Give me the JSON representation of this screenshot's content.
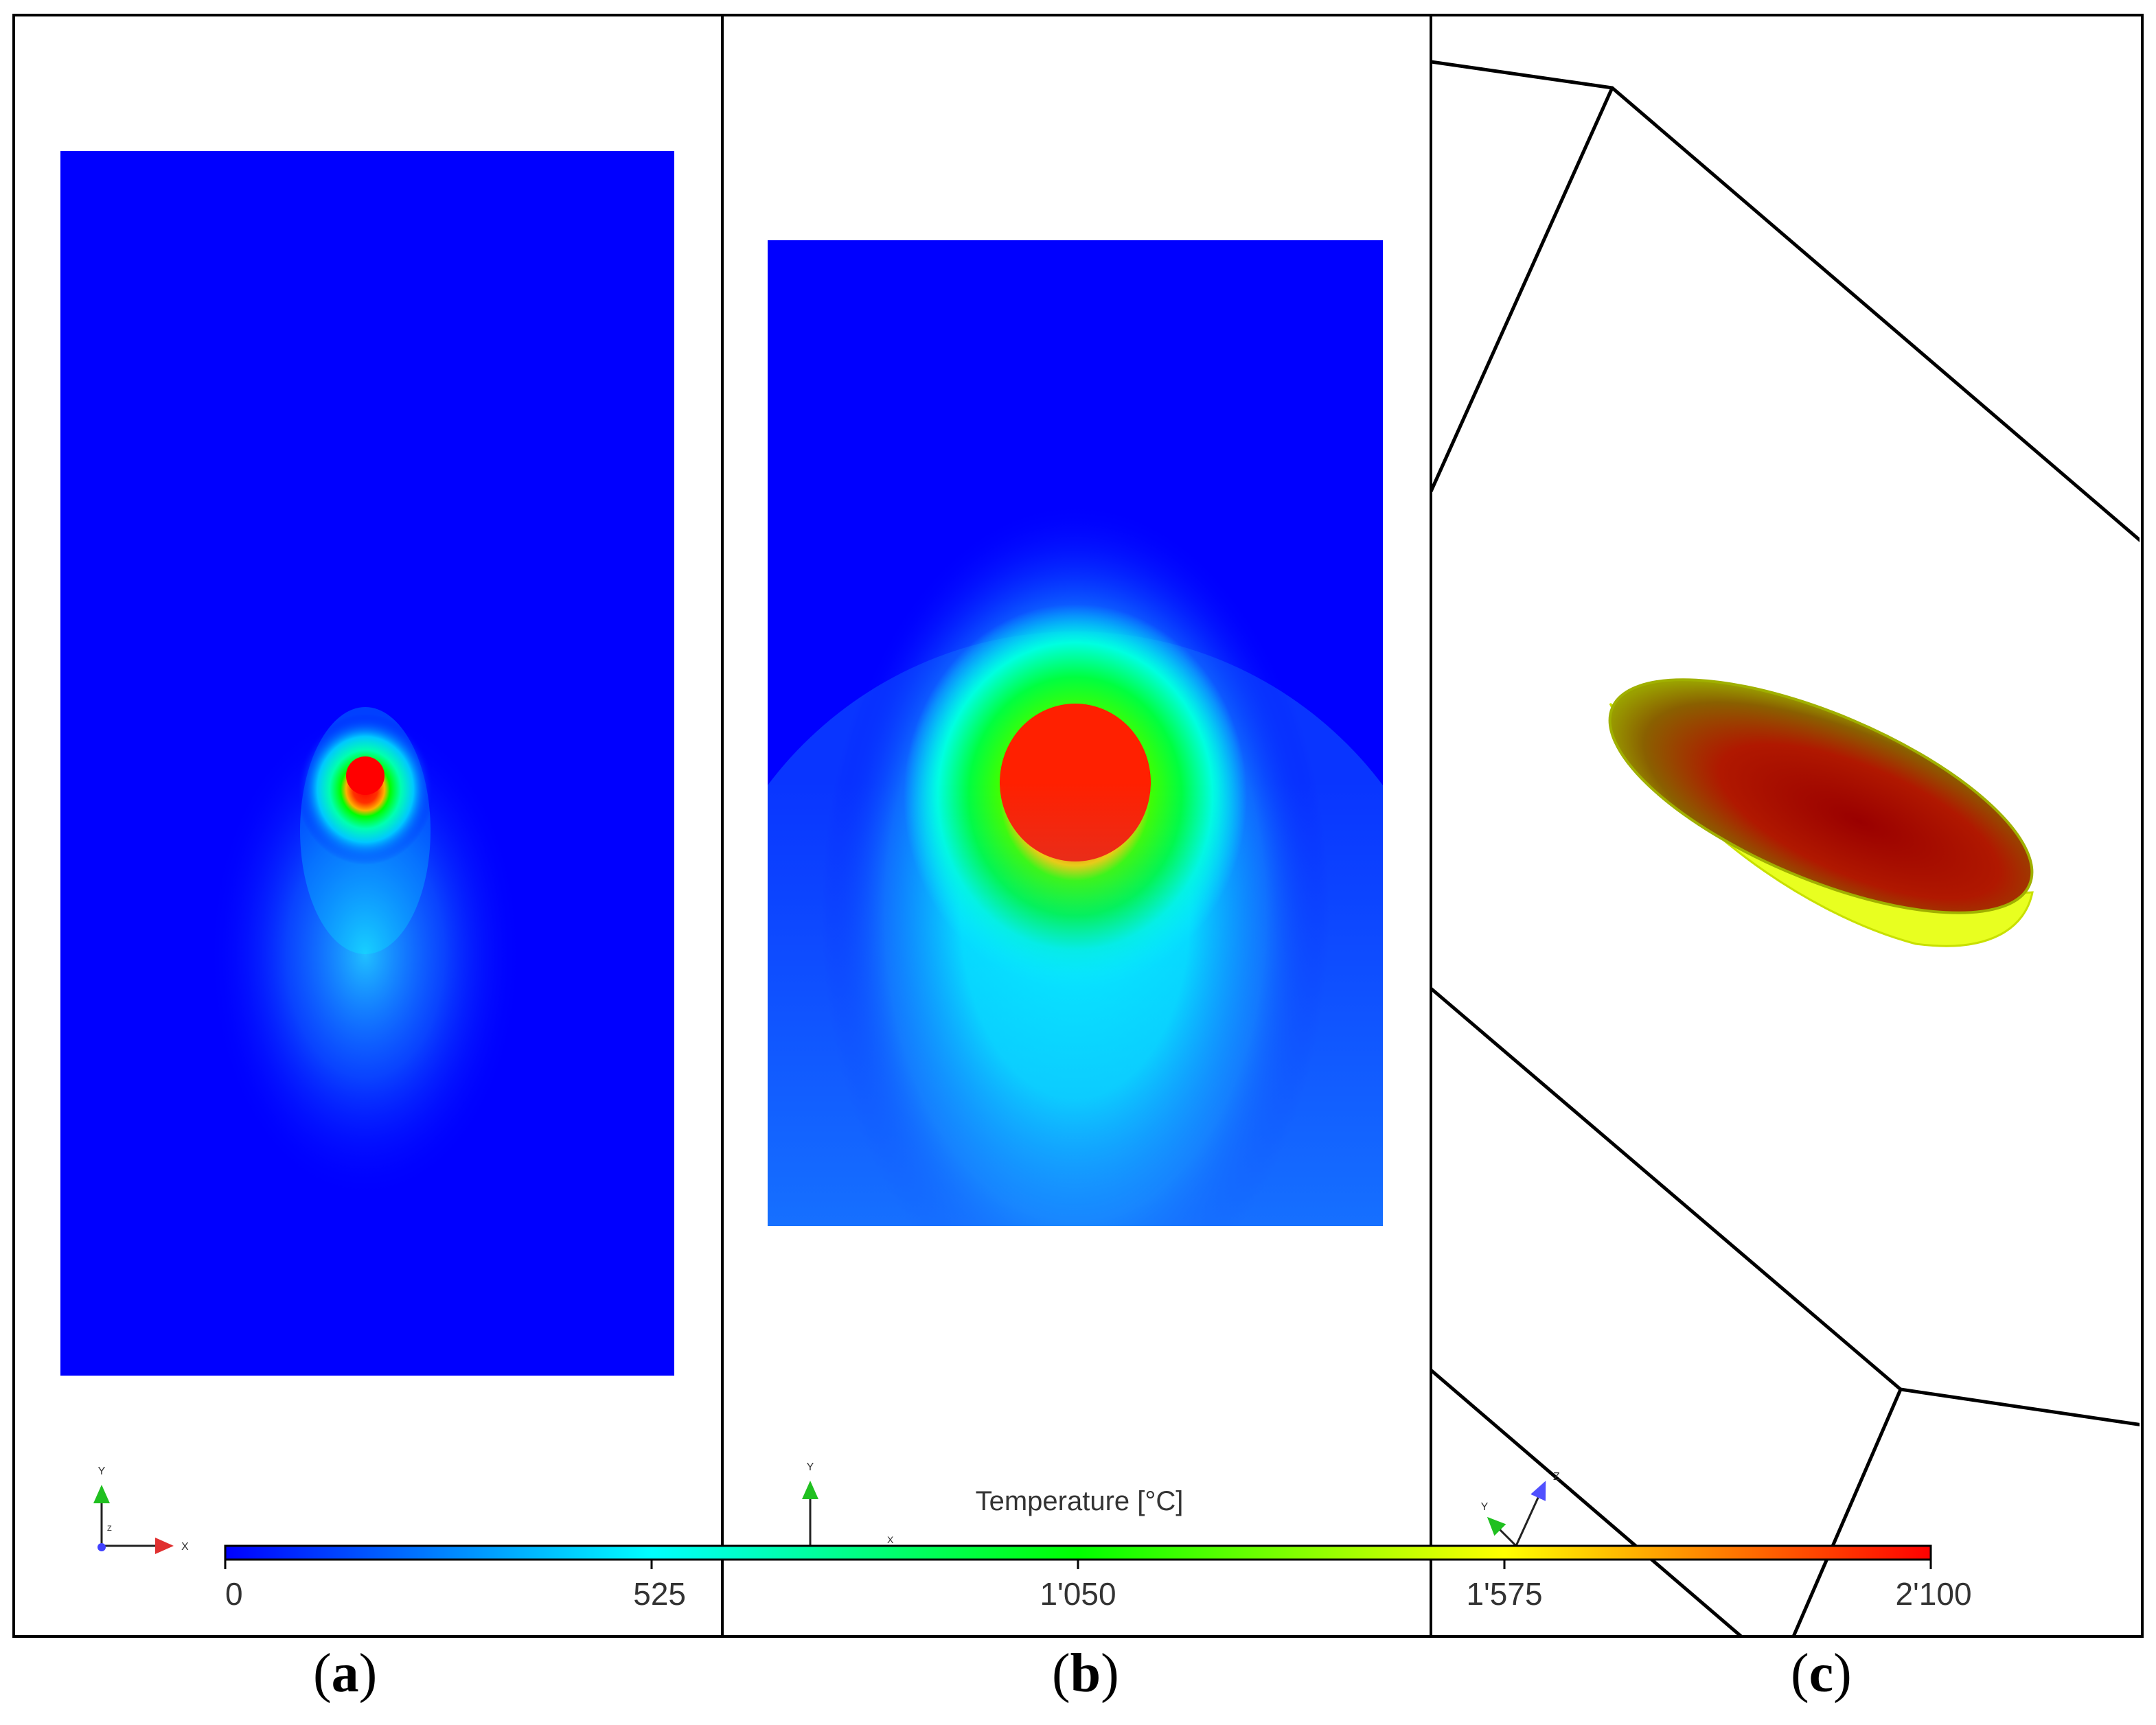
{
  "figure": {
    "panels": [
      {
        "id": "a",
        "label_open": "(",
        "label_letter": "a",
        "label_close": ")"
      },
      {
        "id": "b",
        "label_open": "(",
        "label_letter": "b",
        "label_close": ")"
      },
      {
        "id": "c",
        "label_open": "(",
        "label_letter": "c",
        "label_close": ")"
      }
    ],
    "colorbar": {
      "title": "Temperature [°C]",
      "ticks": [
        "0",
        "525",
        "1'050",
        "1'575",
        "2'100"
      ],
      "min": 0,
      "max": 2100,
      "colormap": [
        "#0000ff",
        "#00ffff",
        "#00ff00",
        "#ffff00",
        "#ff0000"
      ]
    },
    "axis_triads": {
      "panel_a": {
        "y": "Y",
        "x": "X",
        "z": "Z"
      },
      "panel_b": {
        "y": "Y",
        "x": "X"
      },
      "panel_c": {
        "y": "Y",
        "z": "Z"
      }
    },
    "colors": {
      "background_field": "#0000ff",
      "outline": "#000000",
      "melt_pool_top": "#a00000",
      "melt_pool_side": "#e8ff20"
    }
  }
}
